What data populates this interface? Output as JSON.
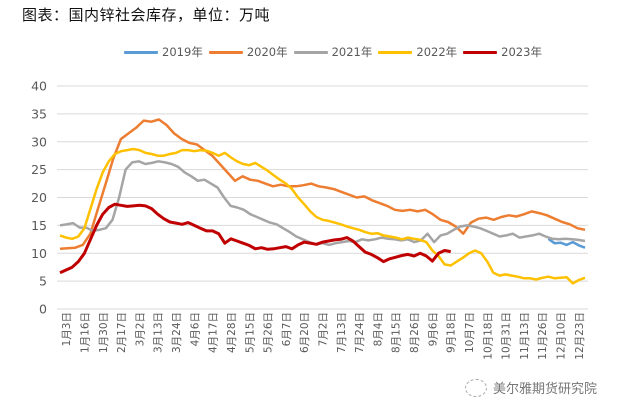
{
  "title": "图表：国内锌社会库存，单位：万吨",
  "watermark": {
    "icon": "wechat-icon",
    "text": "美尔雅期货研究院"
  },
  "chart_data": {
    "type": "line",
    "title": "图表：国内锌社会库存，单位：万吨",
    "xlabel": "",
    "ylabel": "",
    "ylim": [
      0,
      40
    ],
    "yticks": [
      0,
      5,
      10,
      15,
      20,
      25,
      30,
      35,
      40
    ],
    "grid": true,
    "legend_position": "top",
    "categories": [
      "1月3日",
      "1月16日",
      "1月30日",
      "2月17日",
      "3月2日",
      "3月13日",
      "3月24日",
      "4月6日",
      "4月17日",
      "4月28日",
      "5月15日",
      "5月26日",
      "6月7日",
      "6月20日",
      "7月2日",
      "7月13日",
      "7月24日",
      "8月4日",
      "8月15日",
      "8月26日",
      "9月6日",
      "9月18日",
      "10月7日",
      "10月18日",
      "10月31日",
      "11月13日",
      "11月26日",
      "12月10日",
      "12月23日"
    ],
    "series": [
      {
        "name": "2019年",
        "color": "#5b9bd5",
        "values": [
          null,
          null,
          null,
          null,
          null,
          null,
          null,
          null,
          null,
          null,
          null,
          null,
          null,
          null,
          null,
          null,
          null,
          null,
          null,
          null,
          null,
          null,
          null,
          null,
          null,
          null,
          null,
          null,
          null,
          null,
          null,
          null,
          null,
          null,
          null,
          null,
          null,
          null,
          null,
          null,
          null,
          null,
          null,
          null,
          null,
          null,
          null,
          null,
          null,
          null,
          null,
          null,
          null,
          null,
          12.6,
          11.8,
          11.9,
          11.5,
          12.0,
          11.4,
          11.0
        ]
      },
      {
        "name": "2020年",
        "color": "#ed7d31",
        "values": [
          10.8,
          10.9,
          11.0,
          11.5,
          13.5,
          18.0,
          22.5,
          27.0,
          30.5,
          31.5,
          32.5,
          33.8,
          33.6,
          34.0,
          33.0,
          31.5,
          30.5,
          29.8,
          29.5,
          28.5,
          27.5,
          26.0,
          24.5,
          23.0,
          23.8,
          23.2,
          23.0,
          22.5,
          22.0,
          22.3,
          22.0,
          22.0,
          22.2,
          22.5,
          22.0,
          21.8,
          21.5,
          21.0,
          20.5,
          20.0,
          20.2,
          19.5,
          19.0,
          18.5,
          17.8,
          17.6,
          17.8,
          17.5,
          17.8,
          17.0,
          16.0,
          15.6,
          14.8,
          13.5,
          15.5,
          16.2,
          16.4,
          16.0,
          16.5,
          16.8,
          16.6,
          17.0,
          17.5,
          17.2,
          16.8,
          16.2,
          15.6,
          15.2,
          14.5,
          14.2
        ]
      },
      {
        "name": "2021年",
        "color": "#a5a5a5",
        "values": [
          15.0,
          15.2,
          15.4,
          14.6,
          14.6,
          14.0,
          14.2,
          14.5,
          16.0,
          20.0,
          25.0,
          26.3,
          26.5,
          26.0,
          26.2,
          26.5,
          26.3,
          26.0,
          25.5,
          24.5,
          23.8,
          23.0,
          23.2,
          22.5,
          21.8,
          20.0,
          18.5,
          18.2,
          17.8,
          17.0,
          16.5,
          16.0,
          15.5,
          15.2,
          14.5,
          13.8,
          13.0,
          12.5,
          12.0,
          11.6,
          11.8,
          11.5,
          11.8,
          12.0,
          12.2,
          12.0,
          12.5,
          12.3,
          12.5,
          12.8,
          12.6,
          12.5,
          12.3,
          12.5,
          12.0,
          12.3,
          13.5,
          12.0,
          13.2,
          13.5,
          14.2,
          14.8,
          15.0,
          14.8,
          14.5,
          14.0,
          13.5,
          13.0,
          13.2,
          13.5,
          12.8,
          13.0,
          13.2,
          13.5,
          13.0,
          12.6,
          12.5,
          12.6,
          12.5,
          12.4,
          12.2
        ]
      },
      {
        "name": "2022年",
        "color": "#ffc000",
        "values": [
          13.2,
          12.8,
          12.6,
          13.0,
          14.5,
          18.0,
          21.5,
          24.5,
          26.5,
          27.8,
          28.3,
          28.5,
          28.7,
          28.5,
          28.0,
          27.8,
          27.5,
          27.5,
          27.8,
          28.0,
          28.5,
          28.5,
          28.3,
          28.5,
          28.4,
          28.0,
          27.5,
          28.0,
          27.2,
          26.5,
          26.0,
          25.8,
          26.2,
          25.5,
          24.8,
          24.0,
          23.2,
          22.5,
          21.5,
          20.0,
          18.8,
          17.5,
          16.5,
          16.0,
          15.8,
          15.5,
          15.2,
          14.8,
          14.5,
          14.2,
          13.8,
          13.5,
          13.6,
          13.2,
          13.0,
          12.8,
          12.5,
          12.8,
          12.6,
          12.4,
          12.0,
          10.5,
          9.5,
          8.0,
          7.8,
          8.5,
          9.2,
          10.0,
          10.5,
          10.0,
          8.5,
          6.5,
          6.0,
          6.2,
          6.0,
          5.8,
          5.5,
          5.5,
          5.3,
          5.6,
          5.8,
          5.5,
          5.6,
          5.7,
          4.6,
          5.2,
          5.6
        ]
      },
      {
        "name": "2023年",
        "color": "#c00000",
        "values": [
          6.5,
          7.0,
          7.5,
          8.5,
          10.0,
          12.5,
          15.0,
          17.0,
          18.2,
          18.8,
          18.6,
          18.4,
          18.5,
          18.6,
          18.5,
          18.0,
          17.0,
          16.2,
          15.6,
          15.4,
          15.2,
          15.5,
          15.0,
          14.5,
          14.0,
          14.0,
          13.5,
          11.8,
          12.6,
          12.2,
          11.8,
          11.4,
          10.8,
          11.0,
          10.7,
          10.8,
          11.0,
          11.2,
          10.8,
          11.5,
          12.0,
          11.8,
          11.6,
          12.0,
          12.2,
          12.4,
          12.5,
          12.8,
          12.2,
          11.2,
          10.2,
          9.8,
          9.2,
          8.5,
          9.0,
          9.3,
          9.6,
          9.8,
          9.5,
          10.0,
          9.5,
          8.6,
          10.0,
          10.5,
          10.3
        ]
      }
    ]
  },
  "legend": [
    {
      "label": "2019年",
      "color": "#5b9bd5"
    },
    {
      "label": "2020年",
      "color": "#ed7d31"
    },
    {
      "label": "2021年",
      "color": "#a5a5a5"
    },
    {
      "label": "2022年",
      "color": "#ffc000"
    },
    {
      "label": "2023年",
      "color": "#c00000"
    }
  ]
}
